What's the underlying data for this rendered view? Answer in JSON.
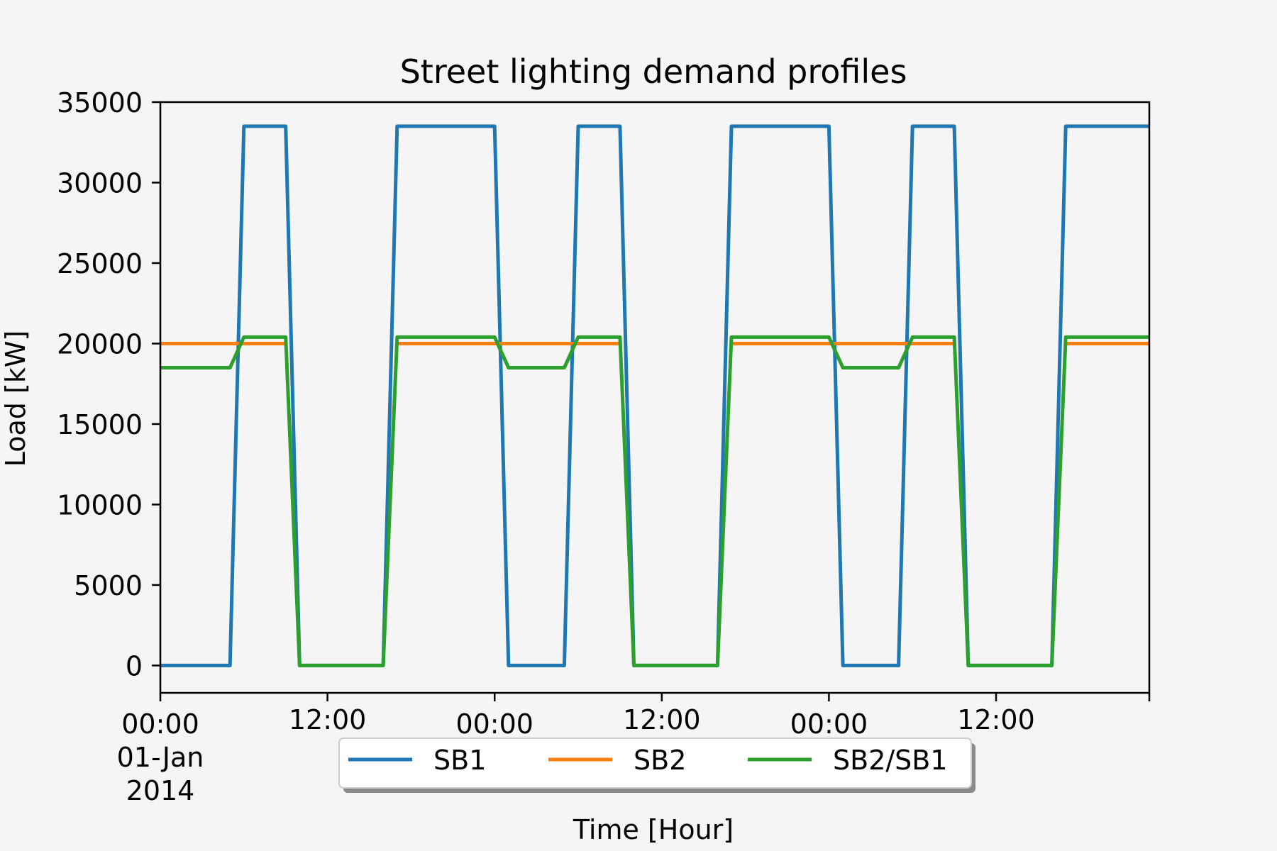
{
  "chart_data": {
    "type": "line",
    "title": "Street lighting demand profiles",
    "xlabel": "Time [Hour]",
    "ylabel": "Load [kW]",
    "xlim_hours": [
      0,
      71
    ],
    "ylim": [
      -1700,
      35000
    ],
    "yticks": [
      0,
      5000,
      10000,
      15000,
      20000,
      25000,
      30000,
      35000
    ],
    "ytick_labels": [
      "0",
      "5000",
      "10000",
      "15000",
      "20000",
      "25000",
      "30000",
      "35000"
    ],
    "xticks_hours": [
      0,
      12,
      24,
      36,
      48,
      60
    ],
    "xtick_labels": [
      [
        "00:00",
        "01-Jan",
        "2014"
      ],
      [
        "12:00"
      ],
      [
        "00:00"
      ],
      [
        "12:00"
      ],
      [
        "00:00"
      ],
      [
        "12:00"
      ]
    ],
    "legend_position": "lower center, outside below axes",
    "grid": false,
    "series": [
      {
        "name": "SB1",
        "color": "#1f77b4",
        "x": [
          0,
          5,
          6,
          9,
          10,
          16,
          17,
          24,
          25,
          29,
          30,
          33,
          34,
          40,
          41,
          48,
          49,
          53,
          54,
          57,
          58,
          64,
          65,
          71
        ],
        "y": [
          0,
          0,
          33500,
          33500,
          0,
          0,
          33500,
          33500,
          0,
          0,
          33500,
          33500,
          0,
          0,
          33500,
          33500,
          0,
          0,
          33500,
          33500,
          0,
          0,
          33500,
          33500
        ]
      },
      {
        "name": "SB2",
        "color": "#ff7f0e",
        "segments": [
          {
            "x": [
              0,
              9
            ],
            "y": [
              20000,
              20000
            ]
          },
          {
            "x": [
              17,
              33
            ],
            "y": [
              20000,
              20000
            ]
          },
          {
            "x": [
              41,
              57
            ],
            "y": [
              20000,
              20000
            ]
          },
          {
            "x": [
              65,
              71
            ],
            "y": [
              20000,
              20000
            ]
          }
        ]
      },
      {
        "name": "SB2/SB1",
        "color": "#2ca02c",
        "x": [
          0,
          5,
          6,
          9,
          10,
          16,
          17,
          24,
          25,
          29,
          30,
          33,
          34,
          40,
          41,
          48,
          49,
          53,
          54,
          57,
          58,
          64,
          65,
          71
        ],
        "y": [
          18500,
          18500,
          20400,
          20400,
          0,
          0,
          20400,
          20400,
          18500,
          18500,
          20400,
          20400,
          0,
          0,
          20400,
          20400,
          18500,
          18500,
          20400,
          20400,
          0,
          0,
          20400,
          20400
        ]
      }
    ]
  }
}
